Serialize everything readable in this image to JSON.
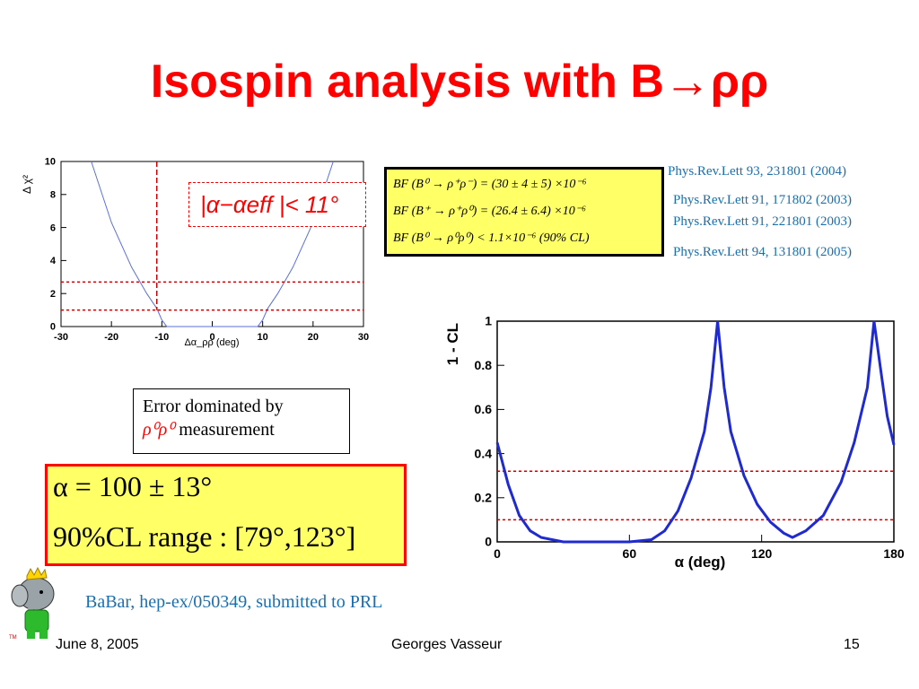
{
  "slide": {
    "title": "Isospin analysis with B→ρρ",
    "colors": {
      "title": "#ff0000",
      "reference": "#1a6fb0",
      "highlight_fill": "#ffff66",
      "curve": "#1f2bd0",
      "threshold": "#cc0000"
    }
  },
  "references": [
    "Phys.Rev.Lett 93, 231801 (2004)",
    "Phys.Rev.Lett 91, 171802 (2003)",
    "Phys.Rev.Lett 91, 221801 (2003)",
    "Phys.Rev.Lett 94, 131801 (2005)"
  ],
  "branching_fractions": [
    "BF (B⁰ → ρ⁺ρ⁻) = (30 ± 4 ± 5) ×10⁻⁶",
    "BF (B⁺ → ρ⁺ρ⁰) = (26.4 ± 6.4) ×10⁻⁶",
    "BF (B⁰ → ρ⁰ρ⁰) < 1.1×10⁻⁶  (90% CL)"
  ],
  "alpha_eff_label": "|α−αeff |< 11°",
  "error_note": {
    "line1": "Error dominated by",
    "line2_sym": "ρ⁰ρ⁰",
    "line2_text": " measurement"
  },
  "result": {
    "line1": "α = 100 ± 13°",
    "line2": "90%CL range : [79°,123°]"
  },
  "citation": "BaBar, hep-ex/050349, submitted to PRL",
  "footer": {
    "date": "June 8, 2005",
    "author": "Georges Vasseur",
    "page": "15"
  },
  "chart_data": [
    {
      "type": "line",
      "title": "",
      "xlabel": "Δα_ρρ (deg)",
      "ylabel": "Δ χ²",
      "xlim": [
        -30,
        30
      ],
      "ylim": [
        0,
        10
      ],
      "x_ticks": [
        "-30",
        "-20",
        "-10",
        "0",
        "10",
        "20",
        "30"
      ],
      "y_ticks": [
        "0",
        "2",
        "4",
        "6",
        "8",
        "10"
      ],
      "series": [
        {
          "x": [
            -24,
            -20,
            -16,
            -13,
            -11,
            -10,
            -9,
            0,
            9,
            10,
            11,
            13,
            16,
            20,
            24
          ],
          "y": [
            10,
            6.3,
            3.6,
            2.0,
            1.1,
            0.4,
            0,
            0,
            0,
            0.4,
            1.1,
            2.0,
            3.6,
            6.3,
            10
          ]
        }
      ],
      "hlines": [
        1,
        2.7
      ],
      "vlines": [
        -11
      ]
    },
    {
      "type": "line",
      "title": "",
      "xlabel": "α (deg)",
      "ylabel": "1 - CL",
      "xlim": [
        0,
        180
      ],
      "ylim": [
        0,
        1
      ],
      "x_ticks": [
        "0",
        "60",
        "120",
        "180"
      ],
      "y_ticks": [
        "0",
        "0.2",
        "0.4",
        "0.6",
        "0.8",
        "1"
      ],
      "series": [
        {
          "x": [
            0,
            5,
            10,
            15,
            20,
            30,
            60,
            70,
            76,
            82,
            88,
            94,
            97,
            100,
            103,
            106,
            112,
            118,
            124,
            130,
            134,
            140,
            148,
            156,
            162,
            168,
            171,
            174,
            177,
            180
          ],
          "y": [
            0.45,
            0.26,
            0.12,
            0.05,
            0.02,
            0.0,
            0.0,
            0.01,
            0.05,
            0.14,
            0.29,
            0.5,
            0.7,
            1.0,
            0.7,
            0.5,
            0.3,
            0.17,
            0.09,
            0.04,
            0.02,
            0.05,
            0.12,
            0.27,
            0.45,
            0.7,
            1.0,
            0.78,
            0.57,
            0.44
          ]
        }
      ],
      "hlines": [
        0.1,
        0.32
      ]
    }
  ]
}
